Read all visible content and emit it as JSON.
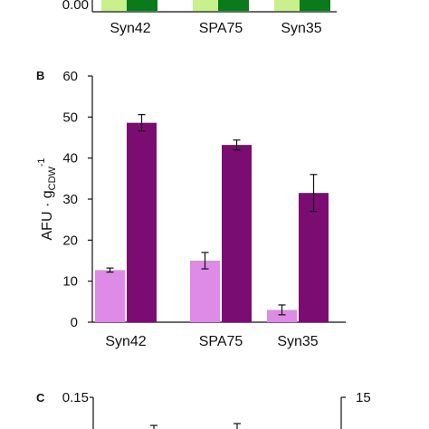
{
  "top_panel": {
    "zero_label": "0.00",
    "categories": [
      "Syn42",
      "SPA75",
      "Syn35"
    ],
    "colors": {
      "light": "#c8f08c",
      "dark": "#0a7a1a"
    }
  },
  "panel_b": {
    "letter": "B",
    "ylabel": {
      "main": "AFU · g",
      "sub": "CDW",
      "sup": "-1"
    }
  },
  "panel_c": {
    "letter": "C",
    "left_tick": "0.15",
    "right_tick": "15"
  },
  "chart_data": [
    {
      "type": "bar",
      "title": "",
      "xlabel": "",
      "ylabel": "AFU · gCDW-1",
      "categories": [
        "Syn42",
        "SPA75",
        "Syn35"
      ],
      "ylim": [
        0,
        60
      ],
      "yticks": [
        0,
        10,
        20,
        30,
        40,
        50,
        60
      ],
      "grid": false,
      "series": [
        {
          "color": "#dd8be6",
          "values": [
            12.7,
            15.0,
            3.0
          ],
          "errors": [
            0.5,
            2.0,
            1.2
          ]
        },
        {
          "color": "#7b0c72",
          "values": [
            48.6,
            43.2,
            31.5
          ],
          "errors": [
            2.0,
            1.2,
            4.5
          ]
        }
      ]
    }
  ]
}
